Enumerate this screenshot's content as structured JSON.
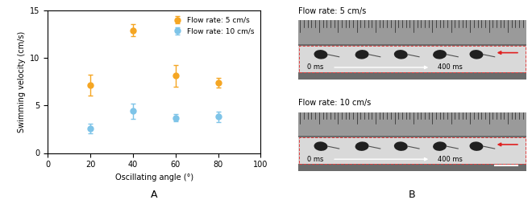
{
  "chart_data": {
    "type": "scatter",
    "x_label": "Oscillating angle (°)",
    "y_label": "Swimming velocity (cm/s)",
    "annotations": [
      "A"
    ],
    "x": [
      20,
      40,
      60,
      80
    ],
    "series": [
      {
        "name": "Flow rate: 5 cm/s",
        "color": "#f5a623",
        "marker": "o",
        "values": [
          7.1,
          12.9,
          8.1,
          7.4
        ],
        "error": [
          1.1,
          0.6,
          1.1,
          0.5
        ]
      },
      {
        "name": "Flow rate: 10 cm/s",
        "color": "#7ec4e8",
        "marker": "o",
        "values": [
          2.6,
          4.4,
          3.7,
          3.8
        ],
        "error": [
          0.5,
          0.8,
          0.35,
          0.55
        ]
      }
    ],
    "xlim": [
      0,
      100
    ],
    "xticks": [
      0,
      20,
      40,
      60,
      80,
      100
    ],
    "ylim": [
      0,
      15
    ],
    "yticks": [
      0,
      5,
      10,
      15
    ],
    "legend": "upper right",
    "grid": false
  },
  "panel_b": {
    "label": "B",
    "images": [
      {
        "title": "Flow rate: 5 cm/s",
        "start": "0 ms",
        "end": "400 ms"
      },
      {
        "title": "Flow rate: 10 cm/s",
        "start": "0 ms",
        "end": "400 ms"
      }
    ]
  }
}
